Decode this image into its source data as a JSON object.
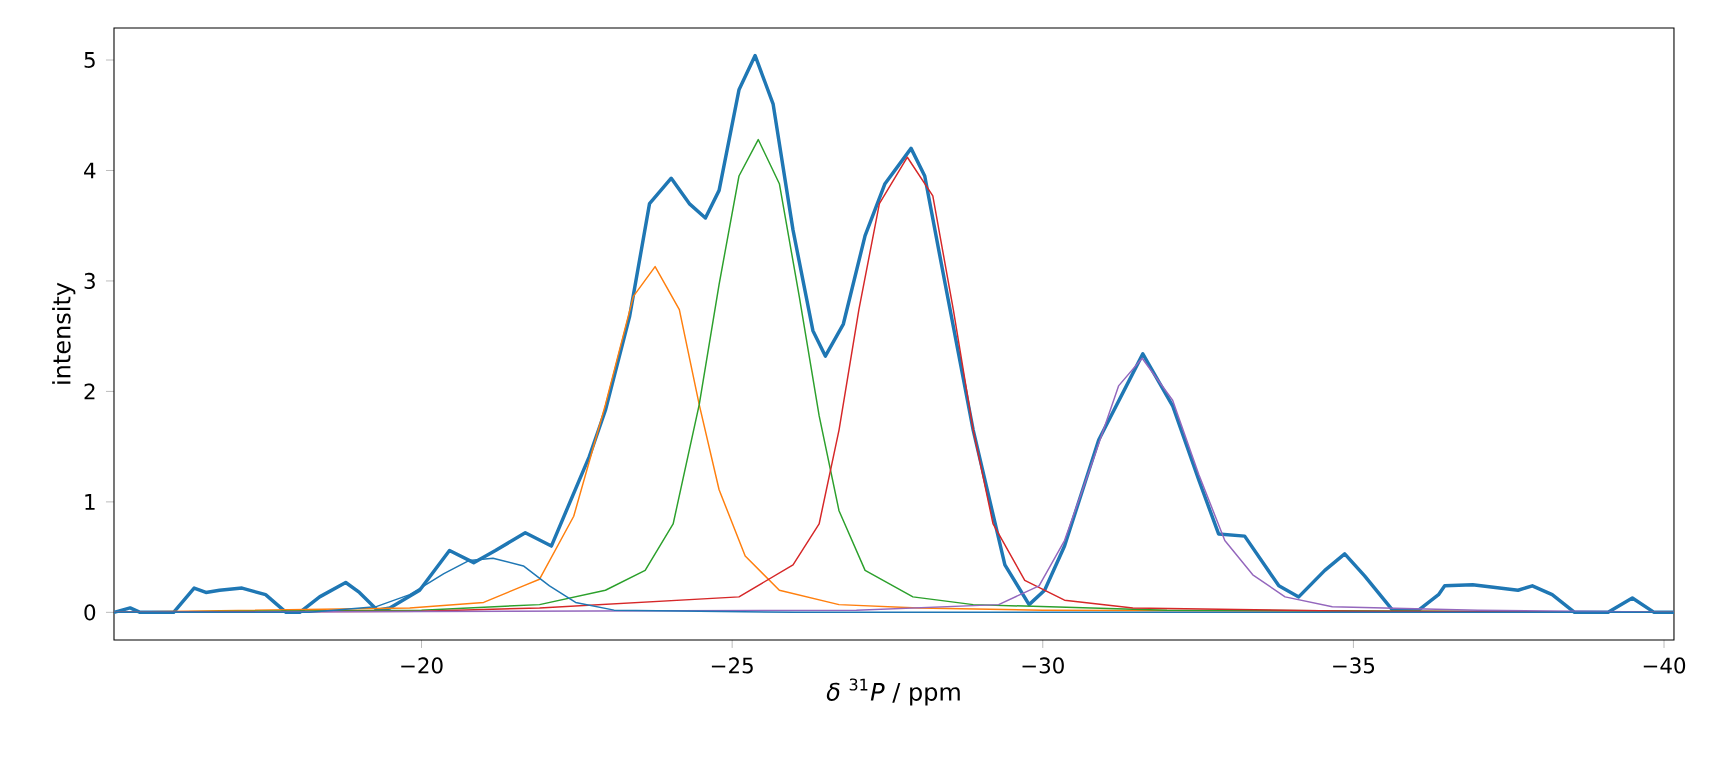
{
  "chart_data": {
    "type": "line",
    "xlabel": "*δ* $^{31}$*P* / ppm",
    "ylabel": "intensity",
    "xlim": [
      -15.05,
      -40.16
    ],
    "ylim": [
      -0.25,
      5.29
    ],
    "xticks": [
      {
        "value": -20,
        "label": "−20"
      },
      {
        "value": -25,
        "label": "−25"
      },
      {
        "value": -30,
        "label": "−30"
      },
      {
        "value": -35,
        "label": "−35"
      },
      {
        "value": -40,
        "label": "−40"
      }
    ],
    "yticks": [
      0,
      1,
      2,
      3,
      4,
      5
    ],
    "series": [
      {
        "color": "#1f77b4",
        "x": [
          -15.05,
          -15.31,
          -15.47,
          -16.01,
          -16.34,
          -16.53,
          -16.75,
          -17.11,
          -17.49,
          -17.82,
          -18.04,
          -18.36,
          -18.78,
          -19.0,
          -19.29,
          -19.49,
          -19.97,
          -20.45,
          -20.84,
          -21.19,
          -21.67,
          -22.09,
          -22.7,
          -22.96,
          -23.35,
          -23.67,
          -24.02,
          -24.31,
          -24.57,
          -24.79,
          -25.11,
          -25.37,
          -25.66,
          -25.98,
          -26.3,
          -26.5,
          -26.79,
          -27.14,
          -27.46,
          -27.88,
          -28.1,
          -28.43,
          -28.88,
          -29.39,
          -29.78,
          -30.03,
          -30.35,
          -30.9,
          -31.61,
          -32.09,
          -32.51,
          -32.83,
          -33.25,
          -33.8,
          -34.12,
          -34.54,
          -34.86,
          -35.18,
          -35.63,
          -36.05,
          -36.37,
          -36.47,
          -36.92,
          -37.65,
          -37.88,
          -38.2,
          -38.56,
          -39.1,
          -39.49,
          -39.84,
          -40.16
        ],
        "values": [
          0,
          0.04,
          0,
          0,
          0.22,
          0.18,
          0.2,
          0.22,
          0.16,
          0,
          0,
          0.14,
          0.27,
          0.18,
          0.02,
          0.04,
          0.2,
          0.56,
          0.45,
          0.56,
          0.72,
          0.6,
          1.41,
          1.83,
          2.68,
          3.7,
          3.93,
          3.7,
          3.57,
          3.82,
          4.73,
          5.04,
          4.6,
          3.46,
          2.55,
          2.32,
          2.61,
          3.41,
          3.88,
          4.2,
          3.95,
          2.97,
          1.65,
          0.43,
          0.07,
          0.2,
          0.6,
          1.56,
          2.34,
          1.87,
          1.2,
          0.71,
          0.69,
          0.24,
          0.14,
          0.38,
          0.53,
          0.33,
          0.02,
          0.02,
          0.16,
          0.24,
          0.25,
          0.2,
          0.24,
          0.16,
          0,
          0,
          0.13,
          0,
          0
        ]
      },
      {
        "color": "#ff7f0e",
        "x": [
          -15.05,
          -18.2,
          -19.81,
          -21.0,
          -21.64,
          -21.9,
          -22.45,
          -22.96,
          -23.41,
          -23.76,
          -24.15,
          -24.47,
          -24.79,
          -25.21,
          -25.76,
          -26.72,
          -28.0,
          -30.0,
          -35.0,
          -40.16
        ],
        "values": [
          0,
          null,
          0.04,
          0.09,
          0.24,
          0.3,
          0.87,
          1.88,
          2.86,
          3.13,
          2.74,
          1.88,
          1.11,
          0.51,
          0.2,
          0.07,
          0.04,
          0.02,
          0.01,
          0
        ]
      },
      {
        "color": "#2ca02c",
        "x": [
          -15.05,
          -20.0,
          -21.9,
          -22.96,
          -23.6,
          -24.05,
          -24.47,
          -24.79,
          -25.11,
          -25.42,
          -25.76,
          -26.08,
          -26.4,
          -26.72,
          -27.14,
          -27.91,
          -28.88,
          -32.0,
          -40.16
        ],
        "values": [
          0,
          0.02,
          0.07,
          0.2,
          0.38,
          0.8,
          1.88,
          2.97,
          3.95,
          4.28,
          3.88,
          2.86,
          1.78,
          0.92,
          0.38,
          0.14,
          0.07,
          0.02,
          0
        ]
      },
      {
        "color": "#d62728",
        "x": [
          -15.05,
          -20.0,
          -21.9,
          -25.11,
          -25.98,
          -26.4,
          -26.72,
          -27.04,
          -27.37,
          -27.82,
          -28.23,
          -28.56,
          -28.88,
          -29.2,
          -29.71,
          -30.35,
          -31.45,
          -35.0,
          -40.16
        ],
        "values": [
          0,
          0.01,
          0.04,
          0.14,
          0.43,
          0.8,
          1.65,
          2.74,
          3.7,
          4.12,
          3.77,
          2.74,
          1.65,
          0.8,
          0.29,
          0.11,
          0.04,
          0.01,
          0
        ]
      },
      {
        "color": "#9467bd",
        "x": [
          -15.05,
          -27.0,
          -29.29,
          -29.94,
          -30.35,
          -30.81,
          -31.22,
          -31.6,
          -32.09,
          -32.51,
          -32.93,
          -33.38,
          -33.9,
          -34.66,
          -37.0,
          -40.16
        ],
        "values": [
          0,
          0.02,
          0.07,
          0.24,
          0.65,
          1.38,
          2.05,
          2.3,
          1.92,
          1.25,
          0.65,
          0.34,
          0.14,
          0.05,
          0.02,
          0
        ]
      },
      {
        "color": "#1f77b4",
        "x": [
          -15.05,
          -18.2,
          -19.26,
          -19.81,
          -20.36,
          -20.77,
          -21.15,
          -21.64,
          -22.06,
          -22.48,
          -23.1,
          -26.0,
          -40.16
        ],
        "values": [
          0,
          0.0,
          0.05,
          0.16,
          0.35,
          0.47,
          0.49,
          0.42,
          0.24,
          0.09,
          0.02,
          0,
          0
        ]
      }
    ]
  }
}
